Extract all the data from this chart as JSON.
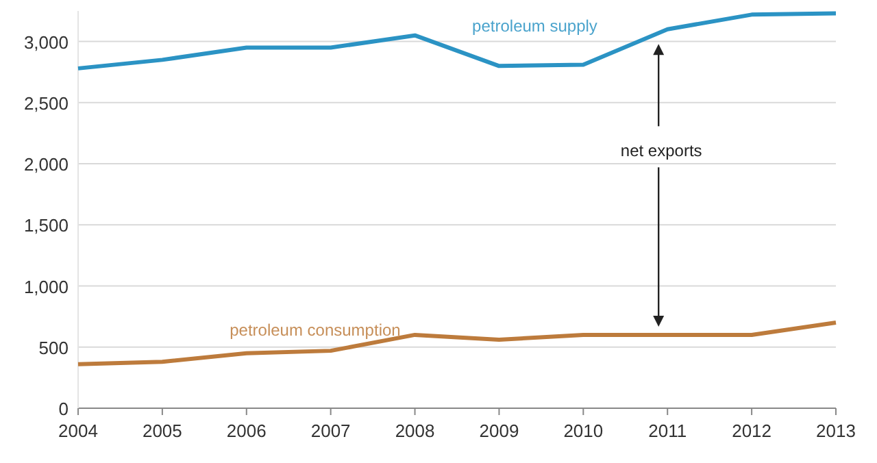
{
  "chart_data": {
    "type": "line",
    "x": [
      2004,
      2005,
      2006,
      2007,
      2008,
      2009,
      2010,
      2011,
      2012,
      2013
    ],
    "series": [
      {
        "name": "petroleum supply",
        "color": "#2b93c4",
        "values": [
          2780,
          2850,
          2950,
          2950,
          3050,
          2800,
          2810,
          3100,
          3220,
          3230
        ]
      },
      {
        "name": "petroleum consumption",
        "color": "#bd7b3c",
        "values": [
          360,
          380,
          450,
          470,
          600,
          560,
          600,
          600,
          600,
          700
        ]
      }
    ],
    "xlim": [
      2004,
      2013
    ],
    "xticks": [
      2004,
      2005,
      2006,
      2007,
      2008,
      2009,
      2010,
      2011,
      2012,
      2013
    ],
    "ylim": [
      0,
      3250
    ],
    "yticks": [
      {
        "value": 0,
        "label": "0"
      },
      {
        "value": 500,
        "label": "500"
      },
      {
        "value": 1000,
        "label": "1,000"
      },
      {
        "value": 1500,
        "label": "1,500"
      },
      {
        "value": 2000,
        "label": "2,000"
      },
      {
        "value": 2500,
        "label": "2,500"
      },
      {
        "value": 3000,
        "label": "3,000"
      }
    ],
    "grid": "y",
    "legend": false,
    "marker": "none",
    "line_style": "solid",
    "annotations": [
      "net exports"
    ]
  }
}
